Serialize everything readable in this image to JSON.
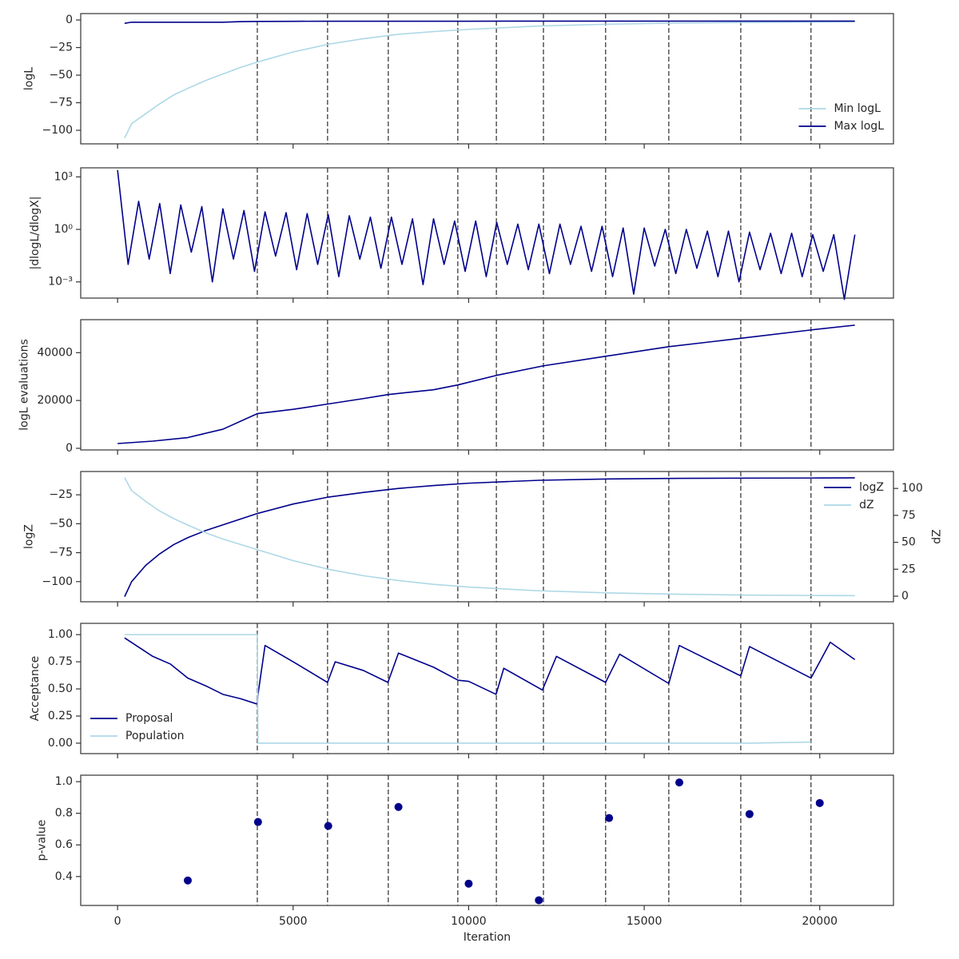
{
  "chart_data": [
    {
      "type": "line",
      "ylabel": "logL",
      "legend": "lower right",
      "xlim": [
        -1050,
        22100
      ],
      "xticks": [
        0,
        5000,
        10000,
        15000,
        20000
      ],
      "vlines": [
        3980,
        5980,
        7710,
        9690,
        10790,
        12130,
        13900,
        15700,
        17750,
        19750
      ],
      "ylim": [
        -112.3,
        5.8
      ],
      "yticks": [
        {
          "value": -100,
          "label": "−100"
        },
        {
          "value": -75,
          "label": "−75"
        },
        {
          "value": -50,
          "label": "−50"
        },
        {
          "value": -25,
          "label": "−25"
        },
        0
      ],
      "x": [
        200,
        400,
        800,
        1200,
        1600,
        2000,
        2500,
        3000,
        3500,
        4000,
        5000,
        6000,
        7000,
        8000,
        9000,
        10000,
        12000,
        14000,
        16000,
        18000,
        20000,
        21000
      ],
      "series": [
        {
          "name": "Min logL",
          "color": "#add8e6",
          "values": [
            -107,
            -94,
            -85,
            -76,
            -68,
            -62,
            -55,
            -49,
            -43,
            -38,
            -29,
            -22,
            -17,
            -13,
            -10.5,
            -8.5,
            -5.5,
            -3.8,
            -2.8,
            -2.2,
            -1.8,
            -1.6
          ]
        },
        {
          "name": "Max logL",
          "color": "#00008b",
          "values": [
            -3,
            -2,
            -2,
            -2,
            -2,
            -2,
            -2,
            -2,
            -1.5,
            -1.3,
            -1.2,
            -1.1,
            -1.1,
            -1.1,
            -1.1,
            -1.1,
            -1,
            -1,
            -1,
            -1,
            -1,
            -1
          ]
        }
      ]
    },
    {
      "type": "line",
      "ylabel": "|dlogL/dlogX|",
      "ylog": true,
      "xlim": [
        -1050,
        22100
      ],
      "xticks": [
        0,
        5000,
        10000,
        15000,
        20000
      ],
      "vlines": [
        3980,
        5980,
        7710,
        9690,
        10790,
        12130,
        13900,
        15700,
        17750,
        19750
      ],
      "ylim": [
        0.000119,
        3281
      ],
      "yticks": [
        {
          "value": 0.001,
          "label": "10⁻³"
        },
        {
          "value": 1,
          "label": "10⁰"
        },
        {
          "value": 1000,
          "label": "10³"
        }
      ],
      "x": [
        0,
        300,
        600,
        900,
        1200,
        1500,
        1800,
        2100,
        2400,
        2700,
        3000,
        3300,
        3600,
        3900,
        4200,
        4500,
        4800,
        5100,
        5400,
        5700,
        6000,
        6300,
        6600,
        6900,
        7200,
        7500,
        7800,
        8100,
        8400,
        8700,
        9000,
        9300,
        9600,
        9900,
        10200,
        10500,
        10800,
        11100,
        11400,
        11700,
        12000,
        12300,
        12600,
        12900,
        13200,
        13500,
        13800,
        14100,
        14400,
        14700,
        15000,
        15300,
        15600,
        15900,
        16200,
        16500,
        16800,
        17100,
        17400,
        17700,
        18000,
        18300,
        18600,
        18900,
        19200,
        19500,
        19800,
        20100,
        20400,
        20700,
        21000
      ],
      "series": [
        {
          "color": "#00008b",
          "values": [
            2400,
            0.01,
            40,
            0.02,
            30,
            0.003,
            25,
            0.05,
            20,
            0.001,
            15,
            0.02,
            12,
            0.004,
            10,
            0.03,
            9,
            0.005,
            8,
            0.01,
            7,
            0.002,
            6,
            0.02,
            5,
            0.006,
            5,
            0.01,
            4,
            0.0007,
            4,
            0.01,
            3,
            0.004,
            3,
            0.002,
            2.5,
            0.01,
            2,
            0.005,
            2,
            0.003,
            2,
            0.01,
            1.5,
            0.004,
            1.5,
            0.002,
            1.2,
            0.0002,
            1.2,
            0.008,
            1,
            0.003,
            1,
            0.006,
            0.8,
            0.002,
            0.8,
            0.001,
            0.7,
            0.005,
            0.6,
            0.003,
            0.6,
            0.002,
            0.5,
            0.004,
            0.5,
            0.0001,
            0.5
          ]
        }
      ]
    },
    {
      "type": "line",
      "ylabel": "logL evaluations",
      "xlim": [
        -1050,
        22100
      ],
      "xticks": [
        0,
        5000,
        10000,
        15000,
        20000
      ],
      "vlines": [
        3980,
        5980,
        7710,
        9690,
        10790,
        12130,
        13900,
        15700,
        17750,
        19750
      ],
      "ylim": [
        -672,
        53800
      ],
      "yticks": [
        0,
        20000,
        40000
      ],
      "x": [
        0,
        1000,
        2000,
        3000,
        3980,
        5000,
        5980,
        7000,
        7710,
        9000,
        9690,
        10790,
        12130,
        13900,
        15700,
        17750,
        19750,
        21000
      ],
      "series": [
        {
          "color": "#00008b",
          "values": [
            2000,
            3000,
            4500,
            8000,
            14500,
            16300,
            18500,
            20800,
            22500,
            24500,
            26500,
            30500,
            34500,
            38500,
            42500,
            46000,
            49500,
            51500
          ]
        }
      ]
    },
    {
      "type": "line",
      "ylabel": "logZ",
      "y2label": "dZ",
      "legend": "upper right",
      "xlim": [
        -1050,
        22100
      ],
      "xticks": [
        0,
        5000,
        10000,
        15000,
        20000
      ],
      "vlines": [
        3980,
        5980,
        7710,
        9690,
        10790,
        12130,
        13900,
        15700,
        17750,
        19750
      ],
      "ylim": [
        -117.4,
        -4.9
      ],
      "yticks": [
        {
          "value": -100,
          "label": "−100"
        },
        {
          "value": -75,
          "label": "−75"
        },
        {
          "value": -50,
          "label": "−50"
        },
        {
          "value": -25,
          "label": "−25"
        }
      ],
      "y2lim": [
        -5.2,
        115.7
      ],
      "y2ticks": [
        0,
        25,
        50,
        75,
        100
      ],
      "x": [
        200,
        400,
        800,
        1200,
        1600,
        2000,
        2500,
        3000,
        3500,
        4000,
        5000,
        6000,
        7000,
        8000,
        9000,
        10000,
        12000,
        14000,
        16000,
        18000,
        20000,
        21000
      ],
      "series": [
        {
          "name": "logZ",
          "color": "#00008b",
          "values": [
            -113,
            -100,
            -86,
            -76,
            -68,
            -62,
            -56,
            -51,
            -46,
            -41,
            -33,
            -27,
            -23,
            -19.5,
            -17,
            -15,
            -12.5,
            -11.3,
            -10.8,
            -10.6,
            -10.5,
            -10.4
          ]
        },
        {
          "name": "dZ",
          "color": "#add8e6",
          "axis": "y2",
          "values": [
            110,
            98,
            88,
            79,
            72,
            66,
            59,
            53,
            48,
            43,
            33,
            25,
            19,
            14.5,
            11,
            8.5,
            5,
            3,
            1.8,
            1,
            0.6,
            0.5
          ]
        }
      ]
    },
    {
      "type": "line",
      "ylabel": "Acceptance",
      "legend": "lower left",
      "xlim": [
        -1050,
        22100
      ],
      "xticks": [
        0,
        5000,
        10000,
        15000,
        20000
      ],
      "vlines": [
        3980,
        5980,
        7710,
        9690,
        10790,
        12130,
        13900,
        15700,
        17750,
        19750
      ],
      "ylim": [
        -0.096,
        1.104
      ],
      "yticks": [
        {
          "value": 0,
          "label": "0.00"
        },
        {
          "value": 0.25,
          "label": "0.25"
        },
        {
          "value": 0.5,
          "label": "0.50"
        },
        {
          "value": 0.75,
          "label": "0.75"
        },
        {
          "value": 1,
          "label": "1.00"
        }
      ],
      "x": [
        200,
        1000,
        1500,
        2000,
        2500,
        3000,
        3500,
        3980,
        4000,
        4200,
        5000,
        5980,
        6200,
        7000,
        7700,
        8000,
        9000,
        9700,
        10000,
        10780,
        11000,
        12100,
        12500,
        13900,
        14300,
        15700,
        16000,
        17750,
        18000,
        19750,
        20300,
        21000
      ],
      "series": [
        {
          "name": "Proposal",
          "color": "#00008b",
          "values": [
            0.97,
            0.8,
            0.73,
            0.6,
            0.53,
            0.45,
            0.41,
            0.36,
            0.45,
            0.9,
            0.75,
            0.56,
            0.75,
            0.67,
            0.56,
            0.83,
            0.7,
            0.58,
            0.57,
            0.45,
            0.69,
            0.49,
            0.8,
            0.56,
            0.82,
            0.55,
            0.9,
            0.62,
            0.89,
            0.6,
            0.93,
            0.77
          ]
        },
        {
          "name": "Population",
          "color": "#add8e6",
          "values": [
            1,
            1,
            1,
            1,
            1,
            1,
            1,
            1,
            0,
            0,
            0,
            0,
            0,
            0,
            0,
            0,
            0,
            0,
            0,
            0,
            0,
            0,
            0,
            0,
            0,
            0,
            0,
            0,
            0,
            0.01,
            null,
            null
          ]
        }
      ]
    },
    {
      "type": "scatter",
      "ylabel": "p-value",
      "xlabel": "Iteration",
      "xlim": [
        -1050,
        22100
      ],
      "xticks": [
        0,
        5000,
        10000,
        15000,
        20000
      ],
      "vlines": [
        3980,
        5980,
        7710,
        9690,
        10790,
        12130,
        13900,
        15700,
        17750,
        19750
      ],
      "ylim": [
        0.217,
        1.041
      ],
      "yticks": [
        0.4,
        0.6,
        0.8,
        {
          "value": 1,
          "label": "1.0"
        }
      ],
      "x": [
        2000,
        4000,
        6000,
        8000,
        10000,
        12000,
        14000,
        16000,
        18000,
        20000
      ],
      "series": [
        {
          "color": "#00008b",
          "values": [
            0.375,
            0.745,
            0.72,
            0.84,
            0.355,
            0.25,
            0.77,
            0.995,
            0.795,
            0.865
          ]
        }
      ]
    }
  ]
}
